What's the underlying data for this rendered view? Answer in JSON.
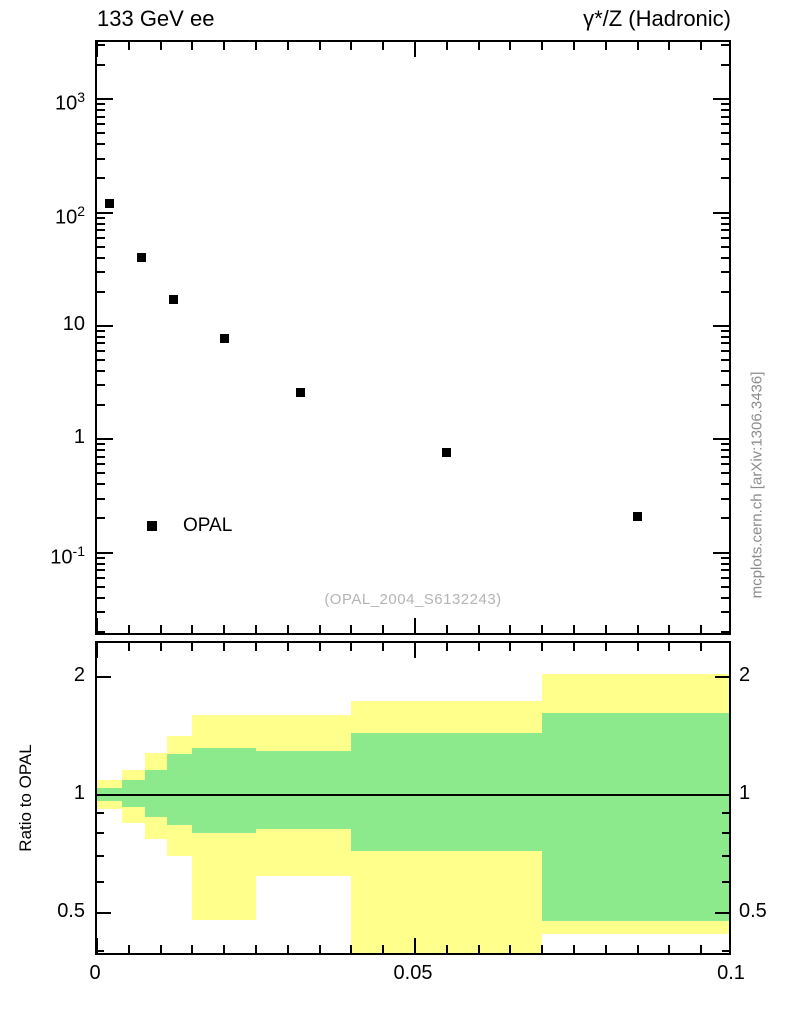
{
  "header": {
    "left_title": "133 GeV ee",
    "right_title": "γ*/Z (Hadronic)"
  },
  "legend": {
    "label": "OPAL",
    "marker": "filled-black-square"
  },
  "watermark": "(OPAL_2004_S6132243)",
  "side_note": "mcplots.cern.ch [arXiv:1306.3436]",
  "ratio_ylabel": "Ratio to OPAL",
  "colors": {
    "marker": "#000000",
    "outer_band": "#ffff8c",
    "inner_band": "#8ce98c",
    "frame": "#000000",
    "watermark_text": "#b4b4b4",
    "side_note_text": "#8c8c8c"
  },
  "chart_data": [
    {
      "type": "scatter",
      "panel": "main",
      "title": "133 GeV ee — γ*/Z (Hadronic)",
      "yscale": "log",
      "xlim": [
        0,
        0.1
      ],
      "ylim": [
        0.018,
        3200
      ],
      "xminor_step": 0.005,
      "xticks": [
        {
          "v": 0,
          "label": "0"
        },
        {
          "v": 0.05,
          "label": "0.05"
        },
        {
          "v": 0.1,
          "label": "0.1"
        }
      ],
      "yticks": [
        {
          "v": 1000,
          "label": "10^3"
        },
        {
          "v": 100,
          "label": "10^2"
        },
        {
          "v": 10,
          "label": "10"
        },
        {
          "v": 1,
          "label": "1"
        },
        {
          "v": 0.1,
          "label": "10^-1"
        }
      ],
      "series": [
        {
          "name": "OPAL",
          "marker": "filled-square",
          "x": [
            0.002,
            0.007,
            0.012,
            0.02,
            0.032,
            0.055,
            0.085
          ],
          "y": [
            120,
            40,
            17,
            7.8,
            2.6,
            0.77,
            0.21
          ]
        }
      ]
    },
    {
      "type": "ratio-bands",
      "panel": "ratio",
      "ylabel": "Ratio to OPAL",
      "yscale": "log",
      "xlim": [
        0,
        0.1
      ],
      "ylim": [
        0.385,
        2.45
      ],
      "baseline": 1,
      "xminor_step": 0.005,
      "xticks": [
        {
          "v": 0,
          "label": "0"
        },
        {
          "v": 0.05,
          "label": "0.05"
        },
        {
          "v": 0.1,
          "label": "0.1"
        }
      ],
      "yticks": [
        {
          "v": 0.5,
          "label": "0.5"
        },
        {
          "v": 1,
          "label": "1"
        },
        {
          "v": 2,
          "label": "2"
        }
      ],
      "yminor": [
        0.4,
        0.6,
        0.7,
        0.8,
        0.9
      ],
      "bins": [
        {
          "x": [
            0.0,
            0.004
          ],
          "outer": [
            0.92,
            1.09
          ],
          "inner": [
            0.965,
            1.04
          ]
        },
        {
          "x": [
            0.004,
            0.0075
          ],
          "outer": [
            0.85,
            1.16
          ],
          "inner": [
            0.93,
            1.09
          ]
        },
        {
          "x": [
            0.0075,
            0.011
          ],
          "outer": [
            0.77,
            1.28
          ],
          "inner": [
            0.88,
            1.16
          ]
        },
        {
          "x": [
            0.011,
            0.015
          ],
          "outer": [
            0.7,
            1.42
          ],
          "inner": [
            0.84,
            1.27
          ]
        },
        {
          "x": [
            0.015,
            0.025
          ],
          "outer": [
            0.48,
            1.6
          ],
          "inner": [
            0.8,
            1.32
          ]
        },
        {
          "x": [
            0.025,
            0.04
          ],
          "outer": [
            0.62,
            1.6
          ],
          "inner": [
            0.82,
            1.3
          ]
        },
        {
          "x": [
            0.04,
            0.07
          ],
          "outer": [
            0.38,
            1.74
          ],
          "inner": [
            0.72,
            1.44
          ]
        },
        {
          "x": [
            0.07,
            0.1
          ],
          "outer": [
            0.44,
            2.04
          ],
          "inner": [
            0.475,
            1.62
          ]
        }
      ]
    }
  ]
}
